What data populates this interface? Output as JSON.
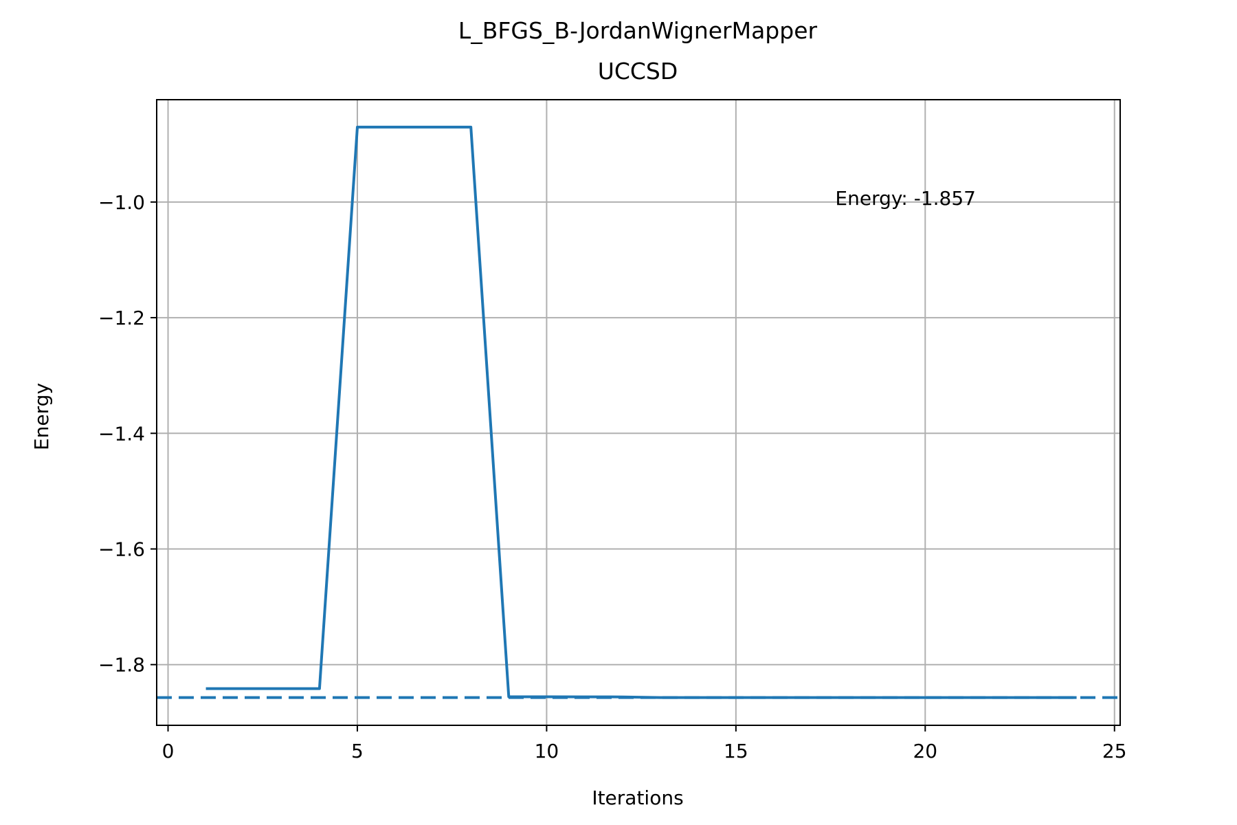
{
  "chart_data": {
    "type": "line",
    "title": "L_BFGS_B-JordanWignerMapper",
    "subtitle": "UCCSD",
    "xlabel": "Iterations",
    "ylabel": "Energy",
    "xlim": [
      -0.3,
      25.15
    ],
    "ylim": [
      -1.905,
      -0.823
    ],
    "xticks": [
      0,
      5,
      10,
      15,
      20,
      25
    ],
    "yticks": [
      -1.8,
      -1.6,
      -1.4,
      -1.2,
      -1.0
    ],
    "ytick_labels": [
      "−1.8",
      "−1.6",
      "−1.4",
      "−1.2",
      "−1.0"
    ],
    "grid": true,
    "series": [
      {
        "color": "#1f77b4",
        "style": "solid",
        "x": [
          1,
          2,
          3,
          4,
          5,
          6,
          7,
          8,
          9,
          10,
          11,
          12,
          13,
          14,
          15,
          16,
          17,
          18,
          19,
          20,
          21,
          22,
          23,
          24
        ],
        "y": [
          -1.8415,
          -1.8415,
          -1.8415,
          -1.8415,
          -0.8705,
          -0.8705,
          -0.8705,
          -0.8705,
          -1.8555,
          -1.8557,
          -1.8558,
          -1.8559,
          -1.857,
          -1.857,
          -1.857,
          -1.857,
          -1.857,
          -1.857,
          -1.857,
          -1.857,
          -1.857,
          -1.857,
          -1.857,
          -1.857
        ]
      }
    ],
    "reference_line": {
      "y": -1.857,
      "color": "#1f77b4",
      "style": "dashed"
    },
    "annotations": [
      {
        "text": "Energy: -1.857",
        "position": "top-right"
      }
    ]
  }
}
